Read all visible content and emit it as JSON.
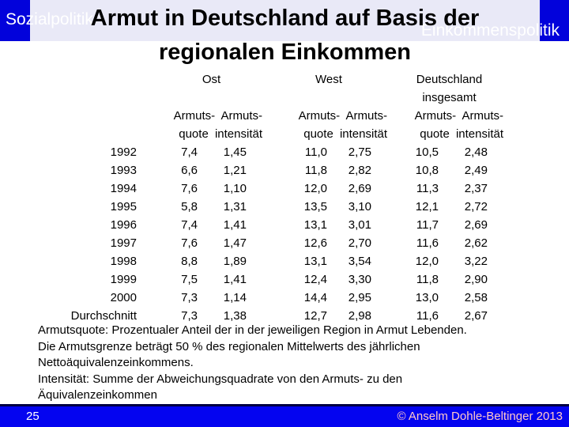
{
  "header": {
    "nav_left": "Sozialpolitik",
    "nav_right": "Einkommenspolitik",
    "title_line1": "Armut in Deutschland auf Basis der",
    "title_line2": "regionalen Einkommen"
  },
  "colors": {
    "top_bar_blue": "#0202db",
    "footer_bar_blue": "#0404f0",
    "footer_border_navy": "#000042",
    "title_box_lavender": "#e9e9f7",
    "copyright_pink": "#ffc8c8",
    "text_black": "#000000",
    "nav_text_white": "#ffffff"
  },
  "table": {
    "groups": [
      {
        "label": "Ost",
        "label2": "",
        "sub1": "Armuts- Armuts-",
        "sub2": "quote intensität"
      },
      {
        "label": "West",
        "label2": "",
        "sub1": "Armuts- Armuts-",
        "sub2": "quote intensität"
      },
      {
        "label": "Deutschland",
        "label2": "insgesamt",
        "sub1": "Armuts- Armuts-",
        "sub2": "quote intensität"
      }
    ],
    "rows": [
      {
        "label": "1992",
        "cells": [
          "7,4",
          "1,45",
          "11,0",
          "2,75",
          "10,5",
          "2,48"
        ]
      },
      {
        "label": "1993",
        "cells": [
          "6,6",
          "1,21",
          "11,8",
          "2,82",
          "10,8",
          "2,49"
        ]
      },
      {
        "label": "1994",
        "cells": [
          "7,6",
          "1,10",
          "12,0",
          "2,69",
          "11,3",
          "2,37"
        ]
      },
      {
        "label": "1995",
        "cells": [
          "5,8",
          "1,31",
          "13,5",
          "3,10",
          "12,1",
          "2,72"
        ]
      },
      {
        "label": "1996",
        "cells": [
          "7,4",
          "1,41",
          "13,1",
          "3,01",
          "11,7",
          "2,69"
        ]
      },
      {
        "label": "1997",
        "cells": [
          "7,6",
          "1,47",
          "12,6",
          "2,70",
          "11,6",
          "2,62"
        ]
      },
      {
        "label": "1998",
        "cells": [
          "8,8",
          "1,89",
          "13,1",
          "3,54",
          "12,0",
          "3,22"
        ]
      },
      {
        "label": "1999",
        "cells": [
          "7,5",
          "1,41",
          "12,4",
          "3,30",
          "11,8",
          "2,90"
        ]
      },
      {
        "label": "2000",
        "cells": [
          "7,3",
          "1,14",
          "14,4",
          "2,95",
          "13,0",
          "2,58"
        ]
      },
      {
        "label": "Durchschnitt",
        "cells": [
          "7,3",
          "1,38",
          "12,7",
          "2,98",
          "11,6",
          "2,67"
        ]
      }
    ]
  },
  "notes": {
    "lines": [
      "Armutsquote: Prozentualer Anteil der in der jeweiligen Region in Armut Lebenden.",
      "Die Armutsgrenze beträgt 50 % des regionalen Mittelwerts des jährlichen",
      "Nettoäquivalenzeinkommens.",
      "Intensität: Summe der Abweichungsquadrate von den Armuts- zu den",
      "Äquivalenzeinkommen"
    ]
  },
  "footer": {
    "page_number": "25",
    "copyright": "© Anselm Dohle-Beltinger 2013"
  }
}
